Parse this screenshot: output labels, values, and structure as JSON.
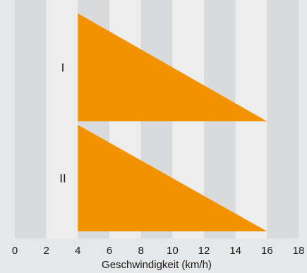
{
  "chart_data": {
    "type": "range-triangle",
    "xlabel": "Geschwindigkeit (km/h)",
    "xlim": [
      0,
      18
    ],
    "xticks": [
      0,
      2,
      4,
      6,
      8,
      10,
      12,
      14,
      16,
      18
    ],
    "grid": "alternating vertical bands every 2 km/h",
    "series": [
      {
        "name": "I",
        "x_start": 4,
        "x_end": 16
      },
      {
        "name": "II",
        "x_start": 4,
        "x_end": 16
      }
    ],
    "colors": {
      "fill": "#f39200",
      "band_dark": "#d9dadb",
      "band_light": "#ededee",
      "background": "#e6e7e8"
    }
  }
}
